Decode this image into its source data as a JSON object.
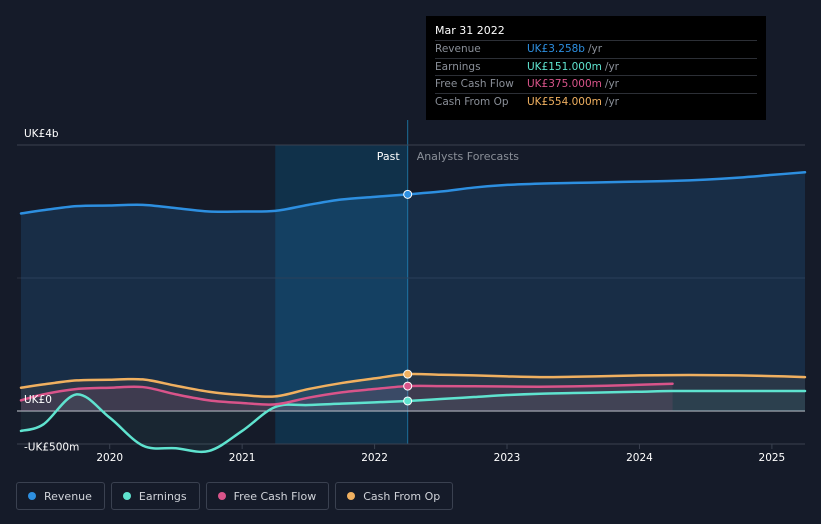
{
  "tooltip": {
    "date": "Mar 31 2022",
    "rows": [
      {
        "label": "Revenue",
        "value": "UK£3.258b",
        "unit": "/yr",
        "color": "#2d8fe0"
      },
      {
        "label": "Earnings",
        "value": "UK£151.000m",
        "unit": "/yr",
        "color": "#5fe3cf"
      },
      {
        "label": "Free Cash Flow",
        "value": "UK£375.000m",
        "unit": "/yr",
        "color": "#d9548a"
      },
      {
        "label": "Cash From Op",
        "value": "UK£554.000m",
        "unit": "/yr",
        "color": "#f0b060"
      }
    ]
  },
  "regions": {
    "past": "Past",
    "forecast": "Analysts Forecasts"
  },
  "legend": [
    {
      "label": "Revenue",
      "color": "#2d8fe0"
    },
    {
      "label": "Earnings",
      "color": "#5fe3cf"
    },
    {
      "label": "Free Cash Flow",
      "color": "#d9548a"
    },
    {
      "label": "Cash From Op",
      "color": "#f0b060"
    }
  ],
  "chart_data": {
    "type": "line",
    "y_tick_labels": [
      {
        "value": 4000,
        "label": "UK£4b"
      },
      {
        "value": 0,
        "label": "UK£0"
      },
      {
        "value": -500,
        "label": "-UK£500m"
      }
    ],
    "ylim": [
      -550,
      4000
    ],
    "xlim": [
      2019.3,
      2025.25
    ],
    "x_ticks": [
      2020,
      2021,
      2022,
      2023,
      2024,
      2025
    ],
    "past_start": 2021.25,
    "now": 2022.25,
    "series": [
      {
        "name": "Revenue",
        "color": "#2d8fe0",
        "x": [
          2019.33,
          2019.5,
          2019.75,
          2020.0,
          2020.25,
          2020.5,
          2020.75,
          2021.0,
          2021.25,
          2021.5,
          2021.75,
          2022.0,
          2022.25,
          2022.5,
          2022.75,
          2023.0,
          2023.25,
          2023.5,
          2023.75,
          2024.0,
          2024.25,
          2024.5,
          2024.75,
          2025.0,
          2025.25
        ],
        "y": [
          2970,
          3020,
          3080,
          3090,
          3100,
          3050,
          3000,
          3000,
          3010,
          3100,
          3180,
          3220,
          3258,
          3300,
          3360,
          3400,
          3420,
          3430,
          3440,
          3450,
          3460,
          3480,
          3510,
          3550,
          3590
        ]
      },
      {
        "name": "Earnings",
        "color": "#5fe3cf",
        "x": [
          2019.33,
          2019.5,
          2019.75,
          2020.0,
          2020.25,
          2020.5,
          2020.75,
          2021.0,
          2021.25,
          2021.5,
          2021.75,
          2022.0,
          2022.25,
          2022.5,
          2022.75,
          2023.0,
          2023.25,
          2023.5,
          2023.75,
          2024.0,
          2024.25,
          2024.5,
          2024.75,
          2025.0,
          2025.25
        ],
        "y": [
          -300,
          -200,
          250,
          -100,
          -520,
          -560,
          -600,
          -300,
          60,
          90,
          110,
          130,
          151,
          180,
          210,
          240,
          260,
          270,
          280,
          290,
          300,
          300,
          300,
          300,
          300
        ]
      },
      {
        "name": "Free Cash Flow",
        "color": "#d9548a",
        "x": [
          2019.33,
          2019.5,
          2019.75,
          2020.0,
          2020.25,
          2020.5,
          2020.75,
          2021.0,
          2021.25,
          2021.5,
          2021.75,
          2022.0,
          2022.25,
          2022.5,
          2022.75,
          2023.0,
          2023.25,
          2023.5,
          2023.75,
          2024.0,
          2024.25
        ],
        "y": [
          160,
          250,
          330,
          350,
          360,
          250,
          160,
          120,
          100,
          200,
          280,
          330,
          375,
          375,
          372,
          368,
          365,
          370,
          380,
          395,
          410
        ]
      },
      {
        "name": "Cash From Op",
        "color": "#f0b060",
        "x": [
          2019.33,
          2019.5,
          2019.75,
          2020.0,
          2020.25,
          2020.5,
          2020.75,
          2021.0,
          2021.25,
          2021.5,
          2021.75,
          2022.0,
          2022.25,
          2022.5,
          2022.75,
          2023.0,
          2023.25,
          2023.5,
          2023.75,
          2024.0,
          2024.25,
          2024.5,
          2024.75,
          2025.0,
          2025.25
        ],
        "y": [
          350,
          400,
          460,
          470,
          475,
          380,
          290,
          240,
          220,
          330,
          420,
          490,
          554,
          545,
          535,
          520,
          510,
          515,
          525,
          535,
          540,
          540,
          535,
          525,
          510
        ]
      }
    ]
  }
}
